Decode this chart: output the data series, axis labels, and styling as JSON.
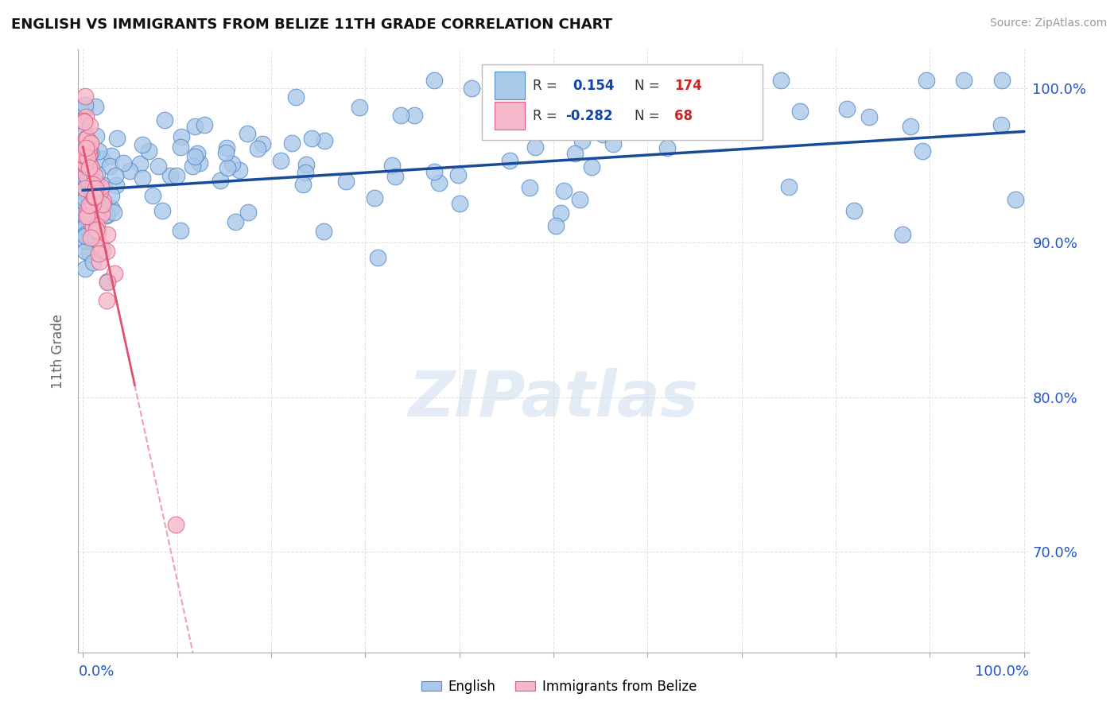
{
  "title": "ENGLISH VS IMMIGRANTS FROM BELIZE 11TH GRADE CORRELATION CHART",
  "source_text": "Source: ZipAtlas.com",
  "ylabel": "11th Grade",
  "ytick_vals": [
    0.7,
    0.8,
    0.9,
    1.0
  ],
  "ytick_labels": [
    "70.0%",
    "80.0%",
    "90.0%",
    "100.0%"
  ],
  "blue_color": "#aac8e8",
  "blue_edge": "#5588cc",
  "pink_color": "#f5b8cb",
  "pink_edge": "#e06080",
  "trend_blue_color": "#1a4a9a",
  "trend_pink_solid_color": "#e05070",
  "trend_pink_dash_color": "#f0a0b0",
  "watermark_color": "#c8d8ea",
  "grid_color": "#cccccc",
  "title_color": "#111111",
  "axis_tick_color": "#2255cc",
  "legend_R_color": "#1144aa",
  "legend_N_color": "#cc2222",
  "background_color": "#ffffff"
}
